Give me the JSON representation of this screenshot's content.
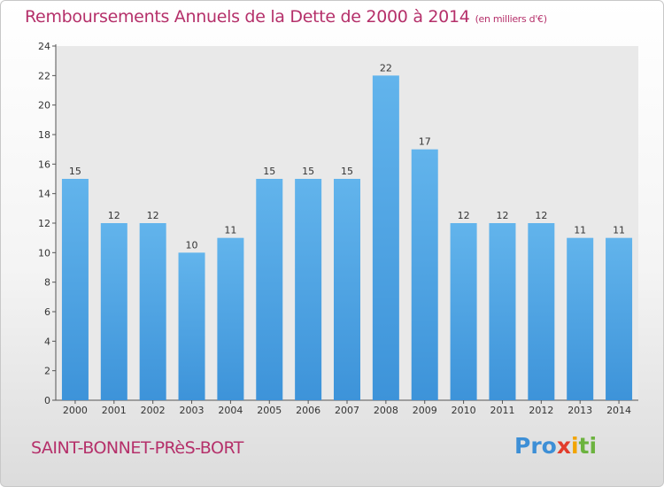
{
  "title": "Remboursements Annuels de la Dette de 2000 à 2014",
  "unit": "(en milliers d'€)",
  "place": "SAINT-BONNET-PRèS-BORT",
  "logo": {
    "p1": "Pro",
    "p2": "x",
    "p3": "i",
    "p4": "ti"
  },
  "colors": {
    "bar": "#3d93d9",
    "bar_light": "#62b4ec",
    "title": "#b5306a",
    "axis": "#555555"
  },
  "chart_data": {
    "type": "bar",
    "title": "Remboursements Annuels de la Dette de 2000 à 2014",
    "categories": [
      "2000",
      "2001",
      "2002",
      "2003",
      "2004",
      "2005",
      "2006",
      "2007",
      "2008",
      "2009",
      "2010",
      "2011",
      "2012",
      "2013",
      "2014"
    ],
    "values": [
      15,
      12,
      12,
      10,
      11,
      15,
      15,
      15,
      22,
      17,
      12,
      12,
      12,
      11,
      11
    ],
    "ylim": [
      0,
      24
    ],
    "yticks": [
      0,
      2,
      4,
      6,
      8,
      10,
      12,
      14,
      16,
      18,
      20,
      22,
      24
    ],
    "xlabel": "",
    "ylabel": ""
  }
}
